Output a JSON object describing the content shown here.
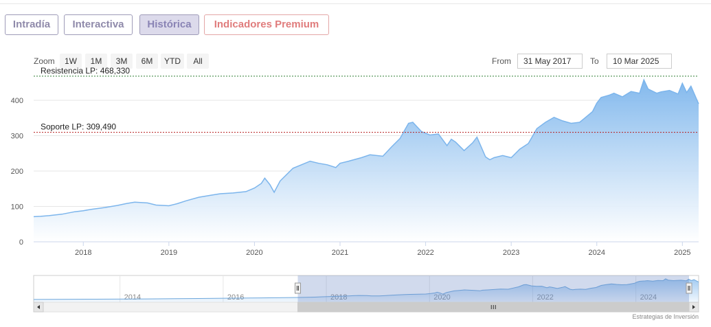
{
  "tabs": [
    {
      "label": "Intradía",
      "state": "normal"
    },
    {
      "label": "Interactiva",
      "state": "normal"
    },
    {
      "label": "Histórica",
      "state": "active"
    },
    {
      "label": "Indicadores Premium",
      "state": "premium"
    }
  ],
  "range_selector": {
    "zoom_label": "Zoom",
    "buttons": [
      "1W",
      "1M",
      "3M",
      "6M",
      "YTD",
      "All"
    ],
    "from_label": "From",
    "from_value": "31 May 2017",
    "to_label": "To",
    "to_value": "10 Mar 2025"
  },
  "chart_data": {
    "type": "area",
    "title": "",
    "xlabel": "",
    "ylabel": "",
    "ylim": [
      0,
      470
    ],
    "yticks": [
      0,
      100,
      200,
      300,
      400
    ],
    "xlim": [
      2017.42,
      2025.19
    ],
    "xticks": [
      2018,
      2019,
      2020,
      2021,
      2022,
      2023,
      2024,
      2025
    ],
    "grid": true,
    "legend": "none",
    "colors": {
      "line": "#7cb5ec",
      "fill_top": "#7cb5ec",
      "fill_bottom": "#ffffff",
      "resistance": "#2e7d32",
      "support": "#b71c1c"
    },
    "plot_lines": [
      {
        "label": "Resistencia LP: 468,330",
        "value": 468.33,
        "style": "dotted",
        "color": "#2e7d32"
      },
      {
        "label": "Soporte LP: 309,490",
        "value": 309.49,
        "style": "dotted",
        "color": "#b71c1c"
      }
    ],
    "series": [
      {
        "x": [
          2017.42,
          2017.5,
          2017.6,
          2017.75,
          2017.9,
          2018.0,
          2018.1,
          2018.25,
          2018.4,
          2018.5,
          2018.6,
          2018.75,
          2018.85,
          2019.0,
          2019.1,
          2019.2,
          2019.35,
          2019.5,
          2019.6,
          2019.75,
          2019.9,
          2020.0,
          2020.08,
          2020.12,
          2020.18,
          2020.23,
          2020.3,
          2020.45,
          2020.55,
          2020.65,
          2020.75,
          2020.85,
          2020.95,
          2021.0,
          2021.1,
          2021.25,
          2021.35,
          2021.5,
          2021.6,
          2021.7,
          2021.8,
          2021.85,
          2021.95,
          2022.05,
          2022.15,
          2022.25,
          2022.3,
          2022.35,
          2022.45,
          2022.55,
          2022.6,
          2022.7,
          2022.75,
          2022.8,
          2022.9,
          2023.0,
          2023.1,
          2023.2,
          2023.3,
          2023.4,
          2023.5,
          2023.6,
          2023.7,
          2023.8,
          2023.85,
          2023.95,
          2024.0,
          2024.05,
          2024.15,
          2024.2,
          2024.3,
          2024.4,
          2024.5,
          2024.55,
          2024.6,
          2024.7,
          2024.75,
          2024.85,
          2024.95,
          2025.0,
          2025.05,
          2025.1,
          2025.19
        ],
        "values": [
          71,
          72,
          74,
          78,
          85,
          88,
          92,
          97,
          103,
          108,
          112,
          110,
          104,
          102,
          108,
          116,
          126,
          132,
          136,
          138,
          142,
          152,
          165,
          180,
          162,
          140,
          172,
          208,
          218,
          228,
          222,
          218,
          210,
          222,
          228,
          238,
          246,
          242,
          268,
          292,
          335,
          338,
          312,
          302,
          305,
          272,
          290,
          282,
          258,
          280,
          296,
          240,
          232,
          238,
          244,
          238,
          262,
          278,
          320,
          338,
          352,
          342,
          335,
          338,
          348,
          368,
          392,
          408,
          415,
          420,
          410,
          425,
          420,
          458,
          432,
          420,
          424,
          428,
          418,
          448,
          422,
          440,
          390
        ]
      }
    ]
  },
  "navigator": {
    "labels": [
      "2014",
      "2016",
      "2018",
      "2020",
      "2022",
      "2024"
    ]
  },
  "credit": "Estrategias de Inversión"
}
